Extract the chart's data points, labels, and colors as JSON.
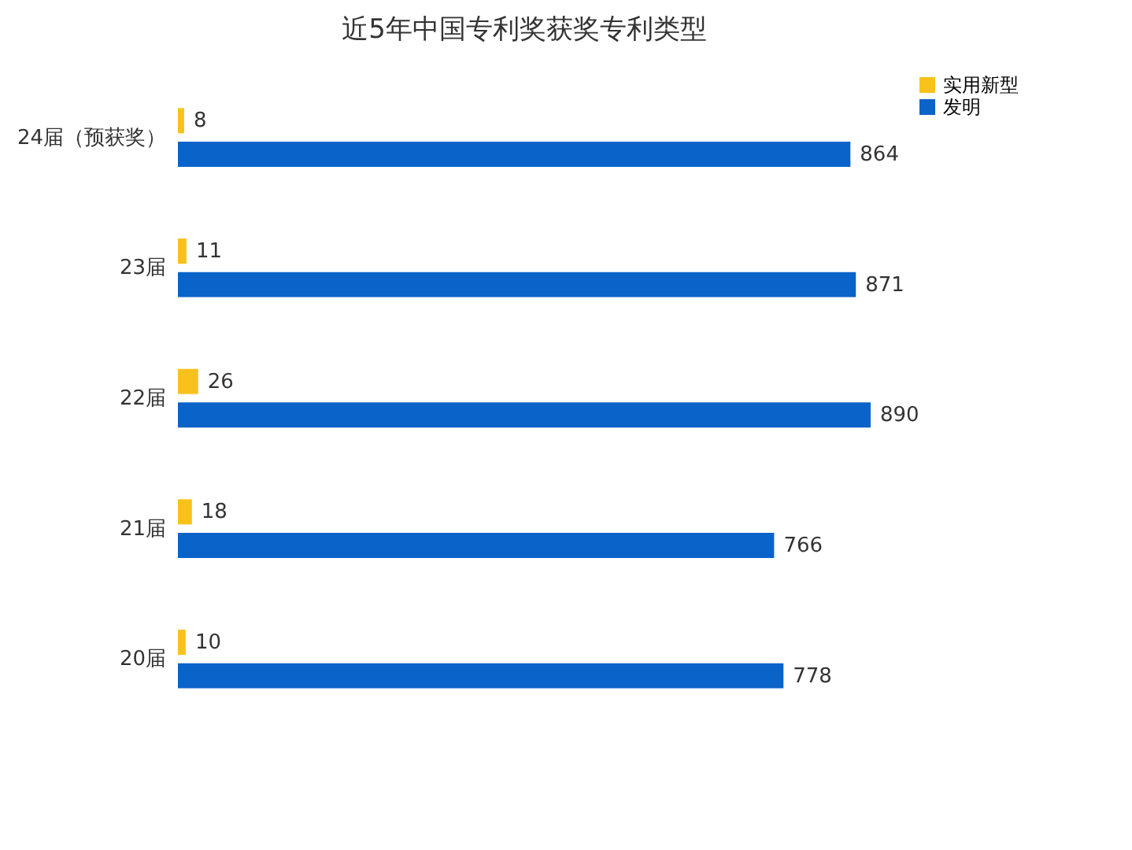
{
  "chart_data": {
    "type": "bar",
    "orientation": "horizontal",
    "title": "近5年中国专利奖获奖专利类型",
    "categories": [
      "24届（预获奖）",
      "23届",
      "22届",
      "21届",
      "20届"
    ],
    "series": [
      {
        "name": "实用新型",
        "color": "#f9c21a",
        "values": [
          8,
          11,
          26,
          18,
          10
        ]
      },
      {
        "name": "发明",
        "color": "#0a63c9",
        "values": [
          864,
          871,
          890,
          766,
          778
        ]
      }
    ],
    "data_labels": true,
    "legend": "right",
    "grid": false
  }
}
